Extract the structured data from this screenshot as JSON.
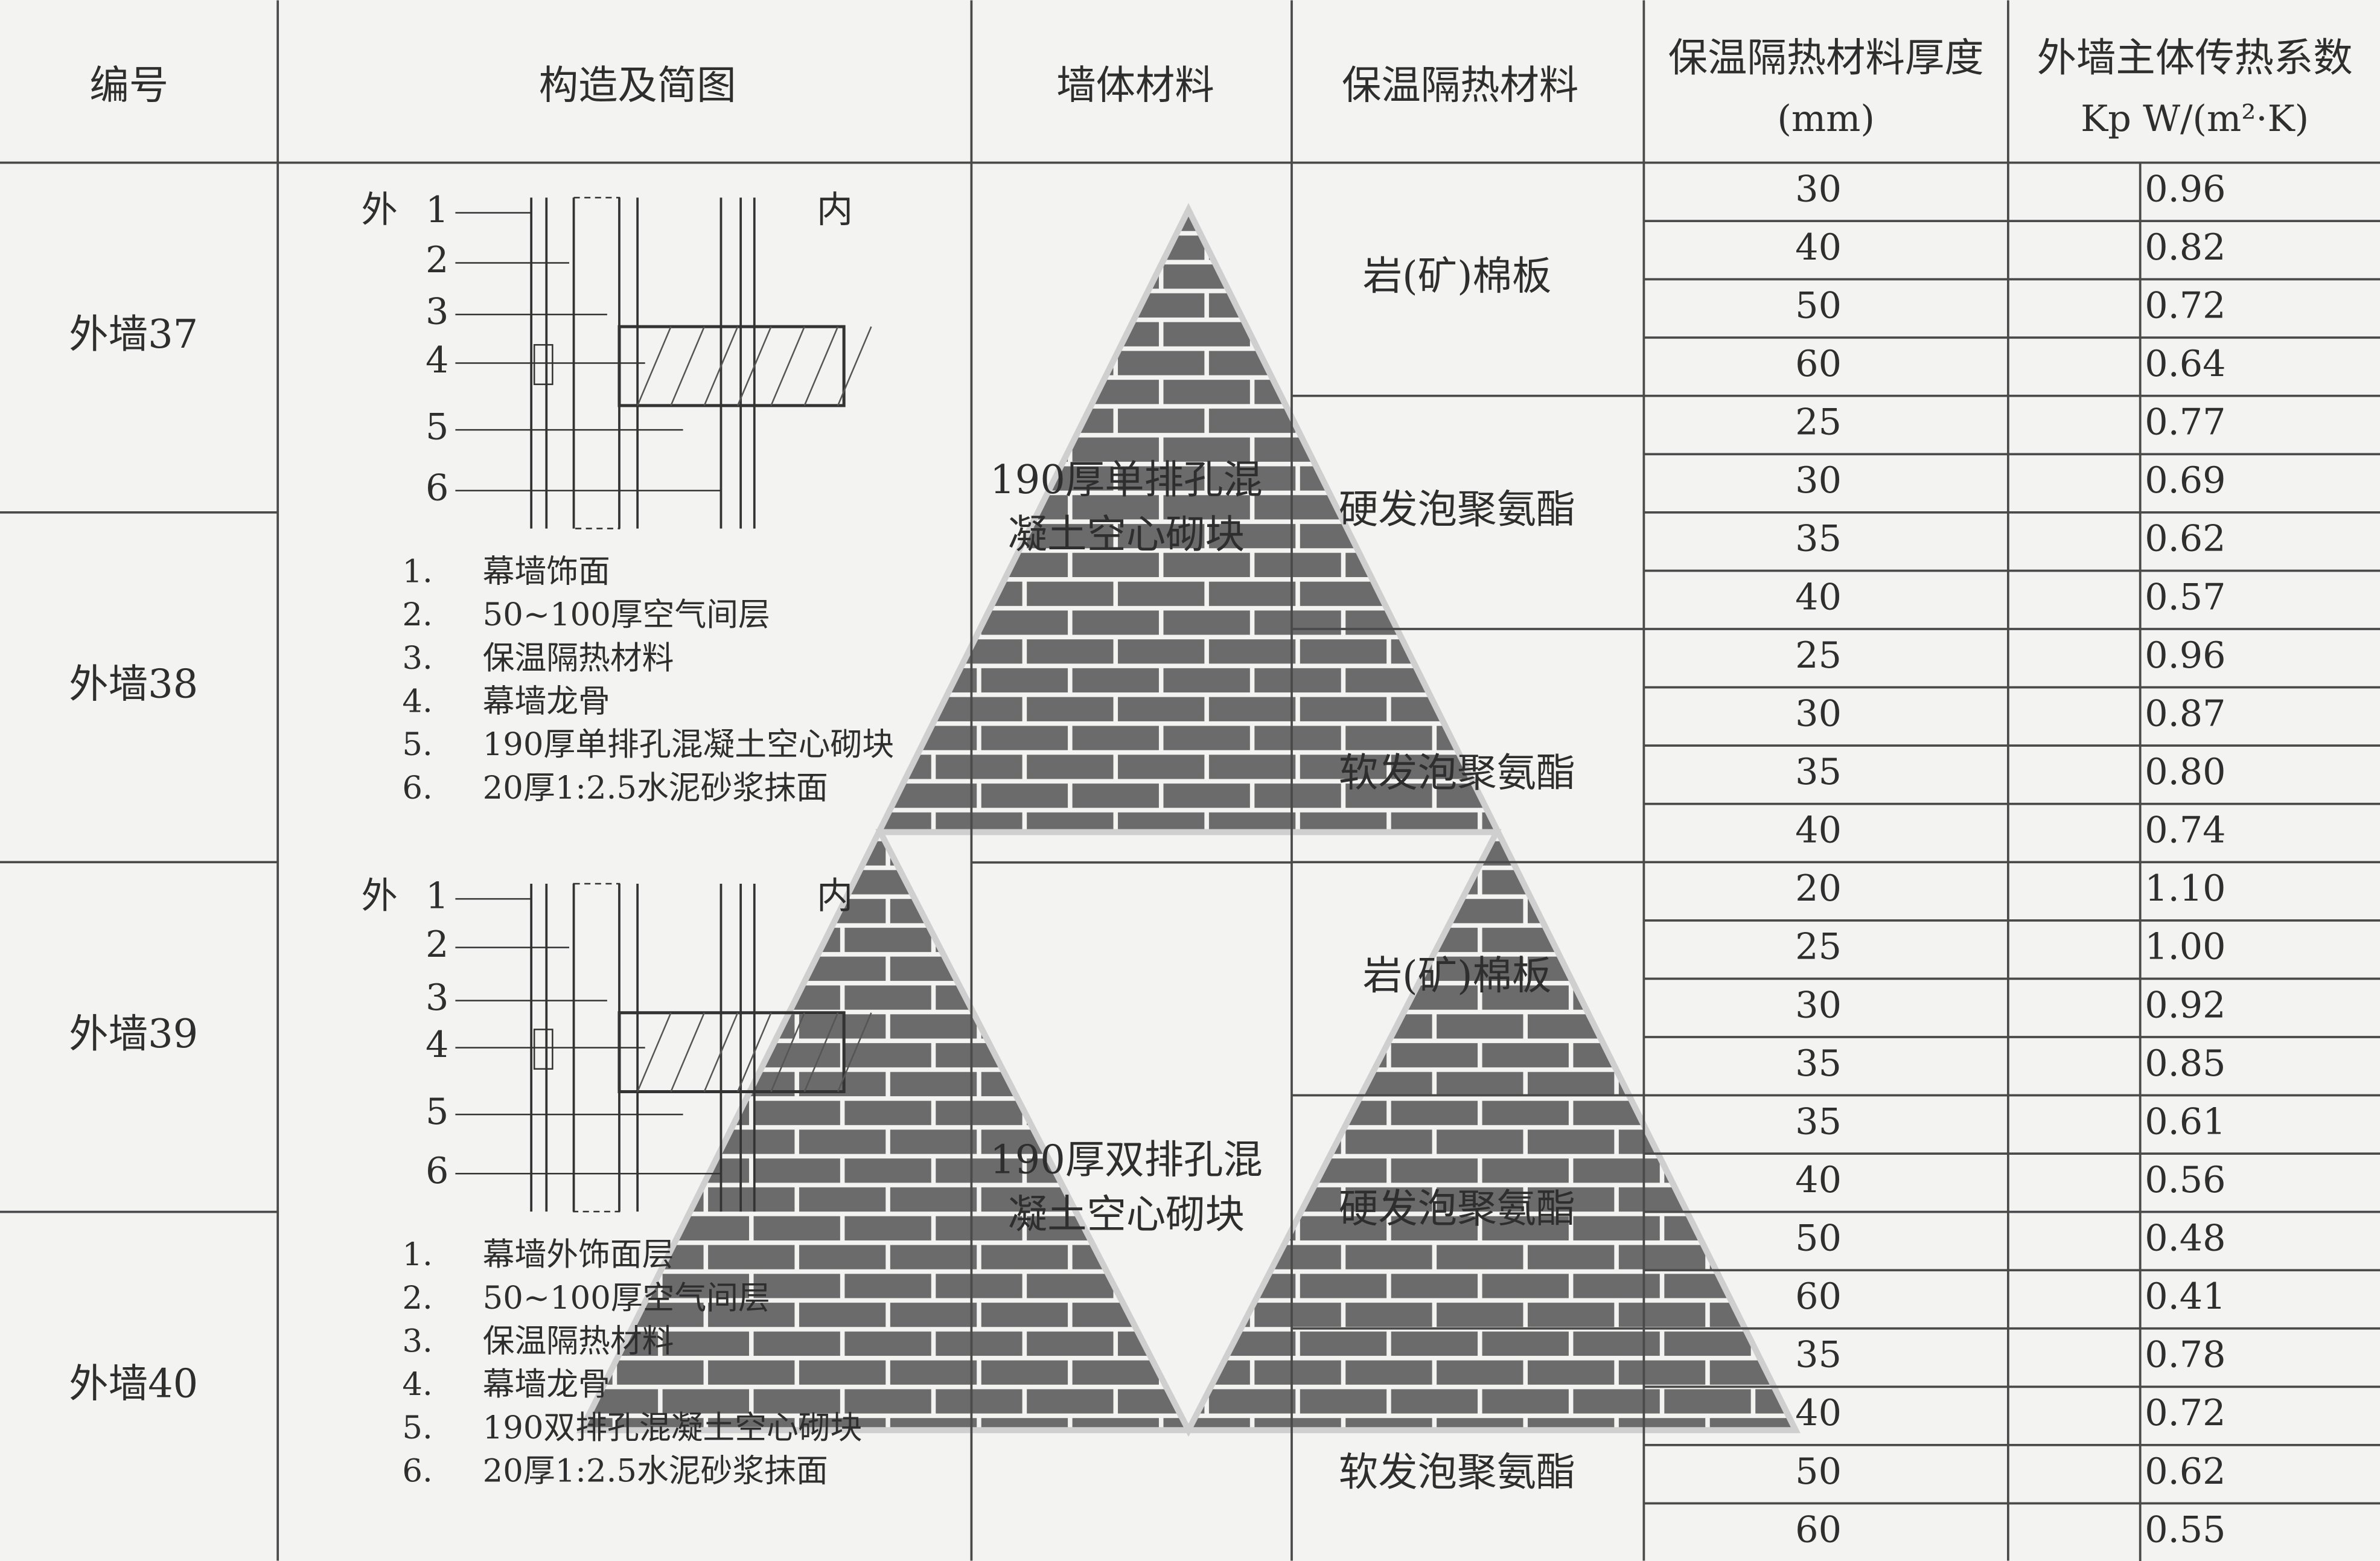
{
  "header": {
    "columns": [
      "编号",
      "构造及简图",
      "墙体材料",
      "保温隔热材料",
      "保温隔热材料厚度",
      "外墙主体传热系数"
    ],
    "thickness_unit": "(mm)",
    "k_unit": "Kp W/(m²·K)"
  },
  "wall_ids": [
    "外墙37",
    "外墙38",
    "外墙39",
    "外墙40"
  ],
  "diagrams": [
    {
      "outside": "外",
      "inside": "内",
      "layers": [
        "1",
        "2",
        "3",
        "4",
        "5",
        "6"
      ],
      "notes": [
        {
          "num": "1.",
          "text": "幕墙饰面"
        },
        {
          "num": "2.",
          "text": "50~100厚空气间层"
        },
        {
          "num": "3.",
          "text": "保温隔热材料"
        },
        {
          "num": "4.",
          "text": "幕墙龙骨"
        },
        {
          "num": "5.",
          "text": "190厚单排孔混凝土空心砌块"
        },
        {
          "num": "6.",
          "text": "20厚1:2.5水泥砂浆抹面"
        }
      ]
    },
    {
      "outside": "外",
      "inside": "内",
      "layers": [
        "1",
        "2",
        "3",
        "4",
        "5",
        "6"
      ],
      "notes": [
        {
          "num": "1.",
          "text": "幕墙外饰面层"
        },
        {
          "num": "2.",
          "text": "50~100厚空气间层"
        },
        {
          "num": "3.",
          "text": "保温隔热材料"
        },
        {
          "num": "4.",
          "text": "幕墙龙骨"
        },
        {
          "num": "5.",
          "text": "190双排孔混凝土空心砌块"
        },
        {
          "num": "6.",
          "text": "20厚1:2.5水泥砂浆抹面"
        }
      ]
    }
  ],
  "wall_materials": [
    [
      "190厚单排孔混",
      "凝土空心砌块"
    ],
    [
      "190厚双排孔混",
      "凝土空心砌块"
    ]
  ],
  "insulation_materials": [
    "岩(矿)棉板",
    "硬发泡聚氨酯",
    "软发泡聚氨酯",
    "岩(矿)棉板",
    "硬发泡聚氨酯",
    "软发泡聚氨酯"
  ],
  "rows": [
    [
      "30",
      "0.96"
    ],
    [
      "40",
      "0.82"
    ],
    [
      "50",
      "0.72"
    ],
    [
      "60",
      "0.64"
    ],
    [
      "25",
      "0.77"
    ],
    [
      "30",
      "0.69"
    ],
    [
      "35",
      "0.62"
    ],
    [
      "40",
      "0.57"
    ],
    [
      "25",
      "0.96"
    ],
    [
      "30",
      "0.87"
    ],
    [
      "35",
      "0.80"
    ],
    [
      "40",
      "0.74"
    ],
    [
      "20",
      "1.10"
    ],
    [
      "25",
      "1.00"
    ],
    [
      "30",
      "0.92"
    ],
    [
      "35",
      "0.85"
    ],
    [
      "35",
      "0.61"
    ],
    [
      "40",
      "0.56"
    ],
    [
      "50",
      "0.48"
    ],
    [
      "60",
      "0.41"
    ],
    [
      "35",
      "0.78"
    ],
    [
      "40",
      "0.72"
    ],
    [
      "50",
      "0.62"
    ],
    [
      "60",
      "0.55"
    ]
  ]
}
